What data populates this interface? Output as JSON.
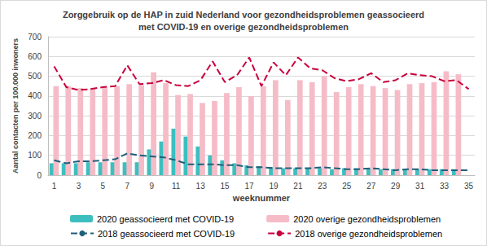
{
  "chart_data": {
    "type": "bar",
    "title": "Zorggebruik op de HAP in zuid Nederland voor gezondheidsproblemen geassocieerd\nmet COVID-19 en overige gezondheidsproblemen",
    "x_label": "weeknummer",
    "y_label": "Aantal contacten per 100.000 inwoners",
    "categories": [
      1,
      null,
      3,
      null,
      5,
      null,
      7,
      null,
      9,
      null,
      11,
      null,
      13,
      null,
      15,
      null,
      17,
      null,
      19,
      null,
      21,
      null,
      23,
      null,
      25,
      null,
      27,
      null,
      29,
      null,
      31,
      null,
      33,
      null,
      35
    ],
    "ylim": [
      0,
      700
    ],
    "yticks": [
      0,
      100,
      200,
      300,
      400,
      500,
      600,
      700
    ],
    "grid": true,
    "legend": "bottom",
    "series": [
      {
        "name": "2020 geassocieerd met COVID-19",
        "type": "bar",
        "color": "#3dbfbf",
        "values": [
          60,
          60,
          60,
          65,
          65,
          65,
          65,
          65,
          130,
          170,
          235,
          195,
          145,
          100,
          75,
          60,
          50,
          45,
          40,
          35,
          35,
          35,
          35,
          30,
          35,
          35,
          35,
          30,
          30,
          30,
          30,
          30,
          30,
          30,
          null
        ]
      },
      {
        "name": "2020 overige gezondheidsproblemen",
        "type": "bar",
        "color": "#f5bcc8",
        "values": [
          450,
          450,
          440,
          440,
          445,
          450,
          460,
          455,
          520,
          465,
          405,
          410,
          365,
          375,
          415,
          445,
          400,
          450,
          480,
          380,
          480,
          470,
          500,
          420,
          445,
          460,
          450,
          440,
          430,
          460,
          465,
          470,
          525,
          510,
          null
        ]
      },
      {
        "name": "2018 geassocieerd met COVID-19",
        "type": "line",
        "color": "#1f5f7a",
        "line_style": "dashed",
        "marker": "none",
        "values": [
          75,
          60,
          70,
          70,
          75,
          80,
          110,
          100,
          95,
          90,
          75,
          55,
          55,
          55,
          50,
          50,
          40,
          40,
          35,
          35,
          35,
          35,
          40,
          35,
          30,
          30,
          35,
          30,
          25,
          30,
          30,
          25,
          25,
          25,
          25
        ]
      },
      {
        "name": "2018 overige gezondheidsproblemen",
        "type": "line",
        "color": "#c8003c",
        "line_style": "dashed",
        "marker": "none",
        "values": [
          550,
          445,
          430,
          435,
          445,
          450,
          555,
          460,
          465,
          480,
          455,
          450,
          480,
          575,
          470,
          505,
          595,
          450,
          570,
          505,
          595,
          540,
          530,
          490,
          475,
          485,
          515,
          470,
          480,
          515,
          505,
          500,
          475,
          480,
          435
        ]
      }
    ]
  }
}
